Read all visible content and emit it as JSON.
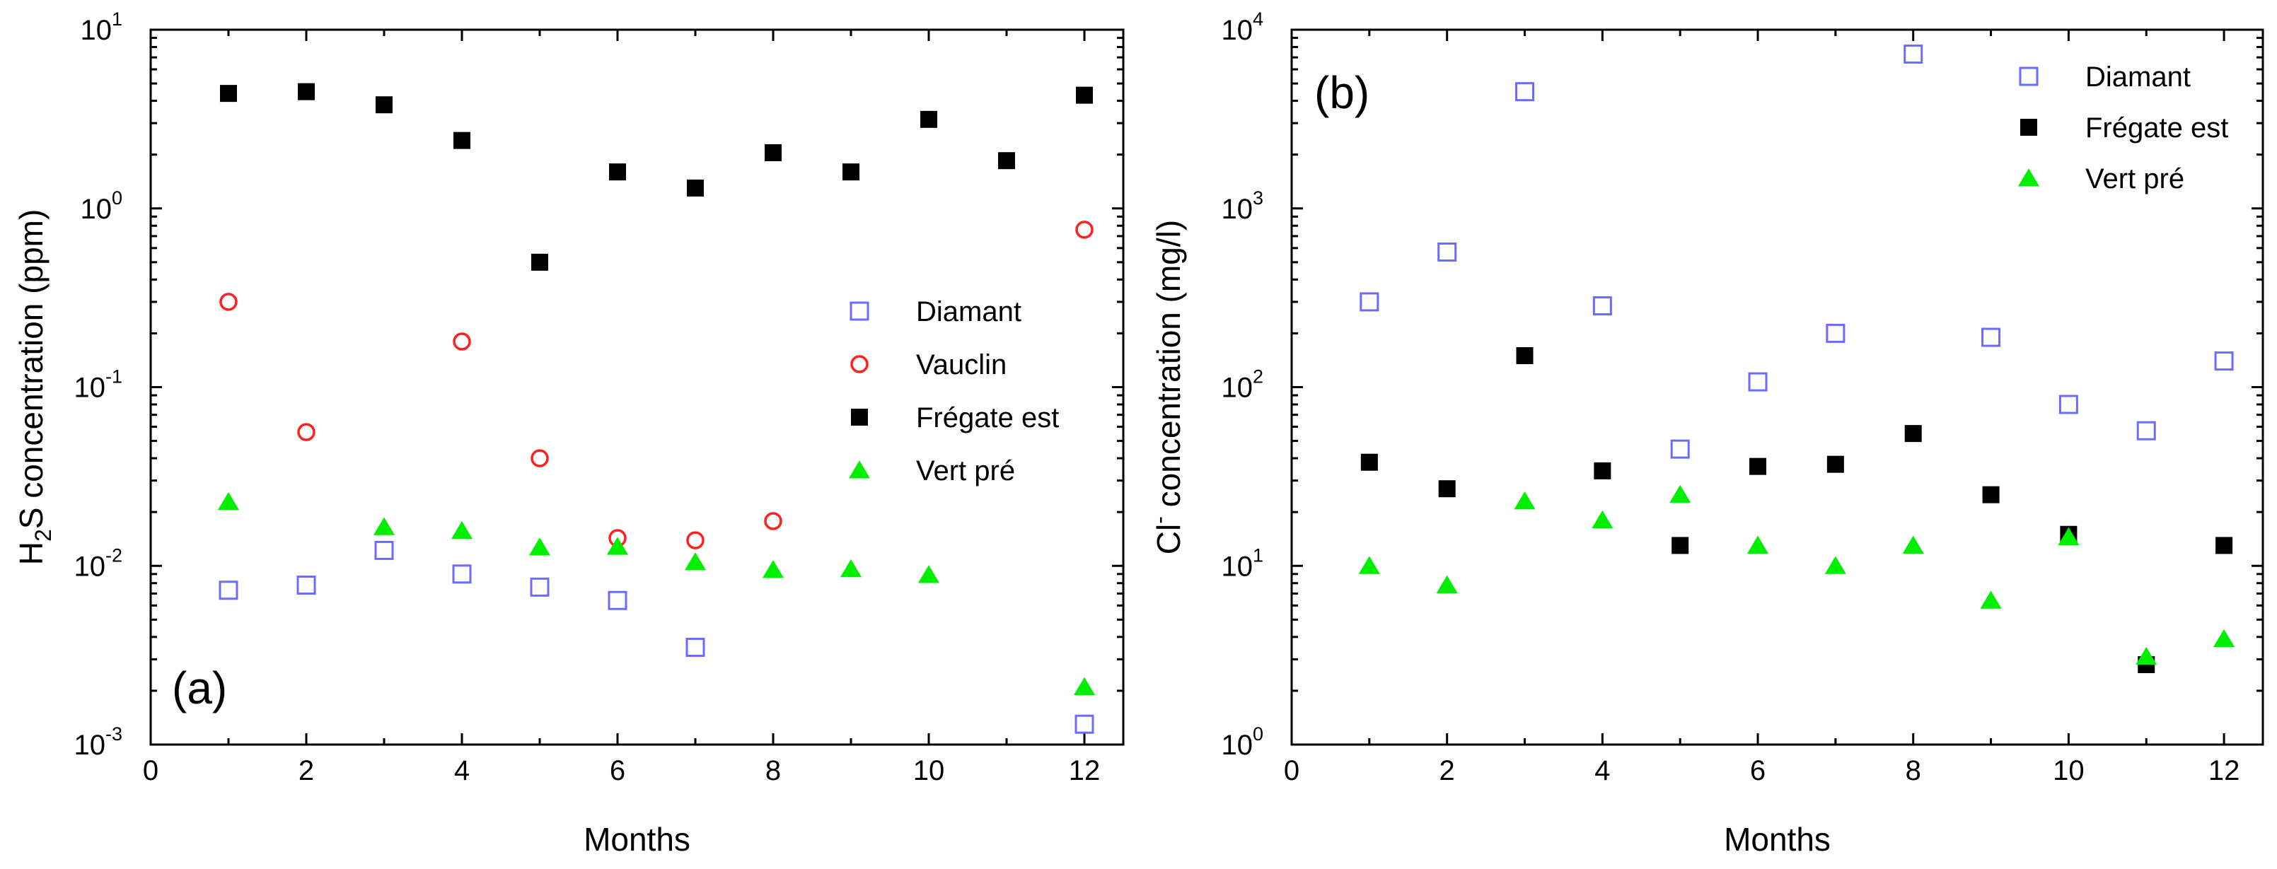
{
  "chart_data": [
    {
      "type": "scatter",
      "panel_label": "(a)",
      "xlabel": "Months",
      "ylabel_parts": {
        "pre": "H",
        "sub": "2",
        "post": "S concentration (ppm)"
      },
      "yscale": "log",
      "xlim": [
        0,
        12.5
      ],
      "ylim": [
        0.001,
        10
      ],
      "x_ticks": [
        0,
        2,
        4,
        6,
        8,
        10,
        12
      ],
      "x_tick_labels": [
        "0",
        "2",
        "4",
        "6",
        "8",
        "10",
        "12"
      ],
      "y_ticks": [
        0.001,
        0.01,
        0.1,
        1,
        10
      ],
      "y_tick_labels": [
        {
          "base": "10",
          "exp": "-3"
        },
        {
          "base": "10",
          "exp": "-2"
        },
        {
          "base": "10",
          "exp": "-1"
        },
        {
          "base": "10",
          "exp": "0"
        },
        {
          "base": "10",
          "exp": "1"
        }
      ],
      "legend_position": "center-right",
      "series": [
        {
          "name": "Diamant",
          "marker": "open-square",
          "color": "#6b6bff",
          "x": [
            1,
            2,
            3,
            4,
            5,
            6,
            7,
            12
          ],
          "y": [
            0.0073,
            0.0078,
            0.0122,
            0.009,
            0.0076,
            0.0064,
            0.0035,
            0.0013
          ]
        },
        {
          "name": "Vauclin",
          "marker": "open-circle",
          "color": "#ff2020",
          "x": [
            1,
            2,
            4,
            5,
            6,
            7,
            8,
            12
          ],
          "y": [
            0.3,
            0.056,
            0.18,
            0.04,
            0.0143,
            0.0139,
            0.0178,
            0.76
          ]
        },
        {
          "name": "Frégate est",
          "marker": "filled-square",
          "color": "#000000",
          "x": [
            1,
            2,
            3,
            4,
            5,
            6,
            7,
            8,
            9,
            10,
            11,
            12
          ],
          "y": [
            4.4,
            4.5,
            3.8,
            2.4,
            0.5,
            1.6,
            1.3,
            2.05,
            1.6,
            3.15,
            1.85,
            4.3
          ]
        },
        {
          "name": "Vert pré",
          "marker": "filled-triangle",
          "color": "#00ee00",
          "x": [
            1,
            3,
            4,
            5,
            6,
            7,
            8,
            9,
            10,
            12
          ],
          "y": [
            0.0228,
            0.0165,
            0.0157,
            0.0127,
            0.0128,
            0.0105,
            0.0095,
            0.0096,
            0.0089,
            0.0021
          ]
        }
      ]
    },
    {
      "type": "scatter",
      "panel_label": "(b)",
      "xlabel": "Months",
      "ylabel_parts": {
        "pre": "Cl",
        "sup": "-",
        "post": " concentration (mg/l)"
      },
      "yscale": "log",
      "xlim": [
        0,
        12.5
      ],
      "ylim": [
        1,
        10000
      ],
      "x_ticks": [
        0,
        2,
        4,
        6,
        8,
        10,
        12
      ],
      "x_tick_labels": [
        "0",
        "2",
        "4",
        "6",
        "8",
        "10",
        "12"
      ],
      "y_ticks": [
        1,
        10,
        100,
        1000,
        10000
      ],
      "y_tick_labels": [
        {
          "base": "10",
          "exp": "0"
        },
        {
          "base": "10",
          "exp": "1"
        },
        {
          "base": "10",
          "exp": "2"
        },
        {
          "base": "10",
          "exp": "3"
        },
        {
          "base": "10",
          "exp": "4"
        }
      ],
      "legend_position": "top-right",
      "series": [
        {
          "name": "Diamant",
          "marker": "open-square",
          "color": "#6b6bff",
          "x": [
            1,
            2,
            3,
            4,
            5,
            6,
            7,
            8,
            9,
            10,
            11,
            12
          ],
          "y": [
            300,
            570,
            4500,
            285,
            45,
            107,
            200,
            7300,
            190,
            80,
            57,
            140
          ]
        },
        {
          "name": "Frégate est",
          "marker": "filled-square",
          "color": "#000000",
          "x": [
            1,
            2,
            3,
            4,
            5,
            6,
            7,
            8,
            9,
            10,
            11,
            12
          ],
          "y": [
            38,
            27,
            150,
            34,
            13,
            36,
            37,
            55,
            25,
            15,
            2.8,
            13
          ]
        },
        {
          "name": "Vert pré",
          "marker": "filled-triangle",
          "color": "#00ee00",
          "x": [
            1,
            2,
            3,
            4,
            5,
            6,
            7,
            8,
            9,
            10,
            11,
            12
          ],
          "y": [
            10,
            7.8,
            23,
            18,
            25,
            13,
            10,
            13,
            6.4,
            14.5,
            3.1,
            3.9
          ]
        }
      ]
    }
  ]
}
